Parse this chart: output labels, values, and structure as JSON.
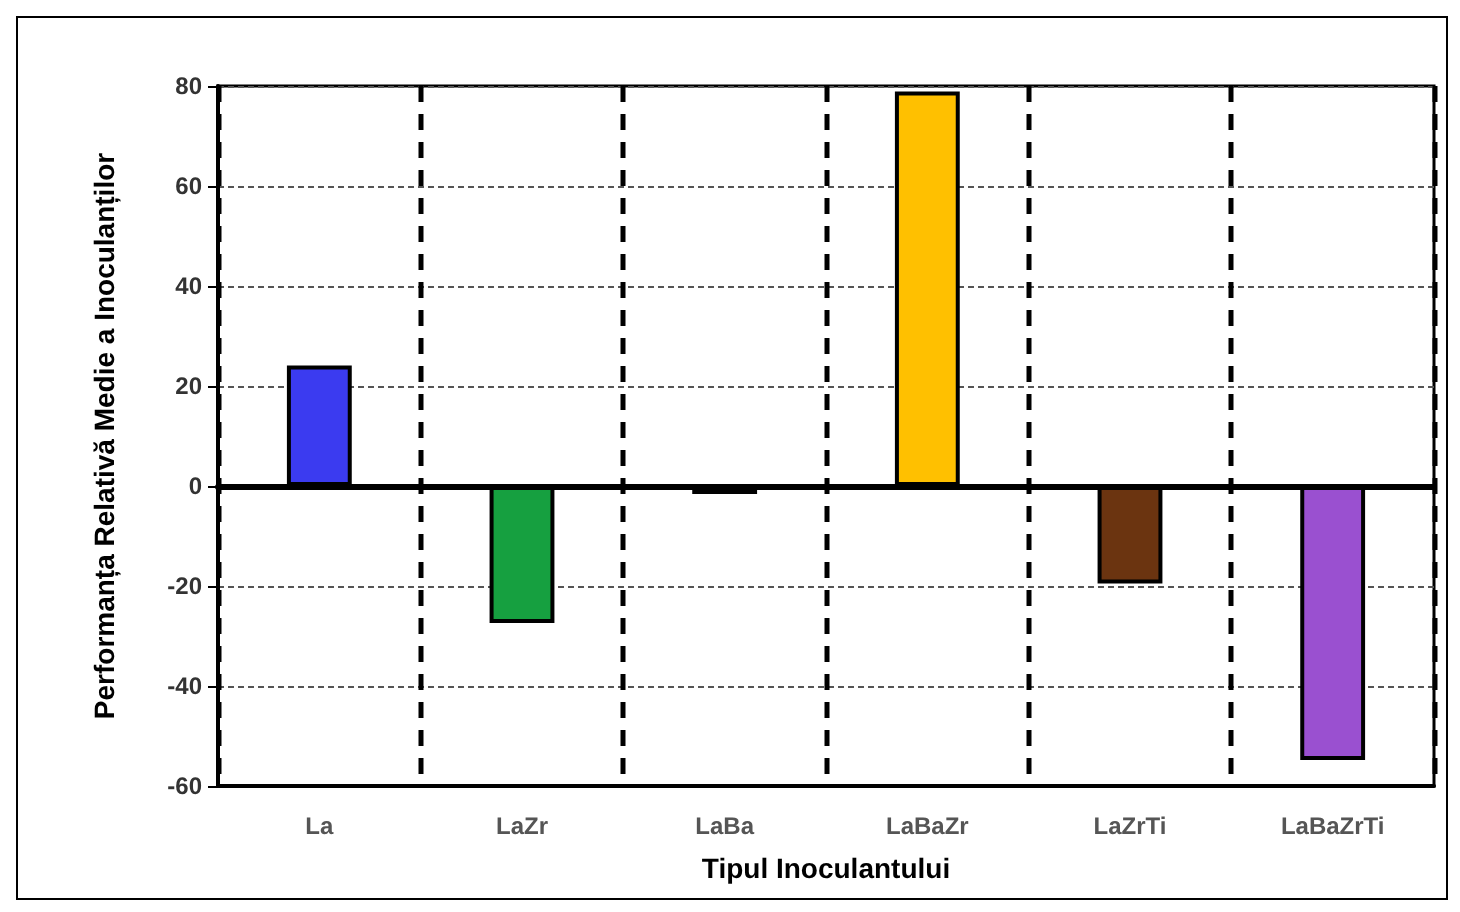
{
  "chart_data": {
    "type": "bar",
    "xlabel": "Tipul Inoculantului",
    "ylabel": "Performanța Relativă Medie a Inoculanților",
    "categories": [
      "La",
      "LaZr",
      "LaBa",
      "LaBaZr",
      "LaZrTi",
      "LaBaZrTi"
    ],
    "values": [
      24.1,
      -27.4,
      -1.6,
      78.9,
      -19.5,
      -54.8
    ],
    "colors": [
      "#3b3bf0",
      "#16a040",
      "#c8d860",
      "#ffc000",
      "#6b3410",
      "#9a50d0"
    ],
    "ylim": [
      -60,
      80
    ],
    "yticks": [
      -60,
      -40,
      -20,
      0,
      20,
      40,
      60,
      80
    ],
    "grid": true
  }
}
